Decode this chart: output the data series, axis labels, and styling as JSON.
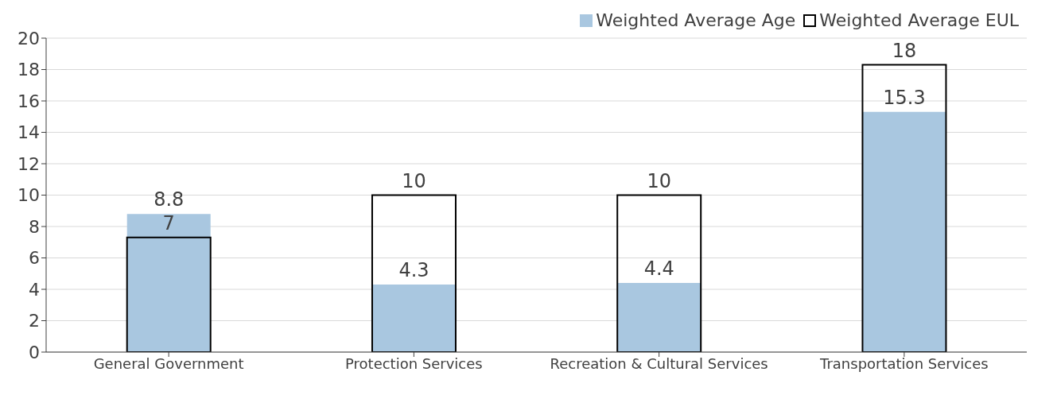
{
  "chart_data": {
    "type": "bar",
    "categories": [
      "General Government",
      "Protection Services",
      "Recreation & Cultural Services",
      "Transportation Services"
    ],
    "series": [
      {
        "name": "Weighted Average Age",
        "color": "#a9c7e0",
        "values": [
          8.8,
          4.3,
          4.4,
          15.3
        ],
        "value_labels": [
          "8.8",
          "4.3",
          "4.4",
          "15.3"
        ]
      },
      {
        "name": "Weighted Average EUL",
        "color": "#000000",
        "values": [
          7.3,
          10,
          10,
          18.3
        ],
        "value_labels": [
          "7",
          "10",
          "10",
          "18"
        ]
      }
    ],
    "ylim": [
      0,
      20
    ],
    "yticks": [
      0,
      2,
      4,
      6,
      8,
      10,
      12,
      14,
      16,
      18,
      20
    ],
    "grid": "y",
    "legend": "top right"
  }
}
